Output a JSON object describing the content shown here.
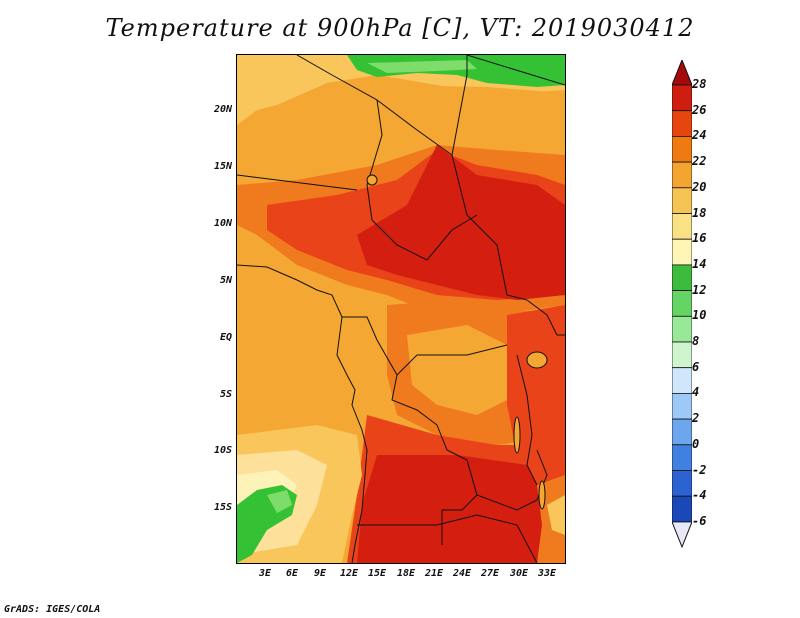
{
  "title": "Temperature at 900hPa [C], VT: 2019030412",
  "footer": "GrADS: IGES/COLA",
  "latitude_labels": [
    "20N",
    "15N",
    "10N",
    "5N",
    "EQ",
    "5S",
    "10S",
    "15S"
  ],
  "longitude_labels": [
    "3E",
    "6E",
    "9E",
    "12E",
    "15E",
    "18E",
    "21E",
    "24E",
    "27E",
    "30E",
    "33E"
  ],
  "colorbar": {
    "labels": [
      "28",
      "26",
      "24",
      "22",
      "20",
      "18",
      "16",
      "14",
      "12",
      "10",
      "8",
      "6",
      "4",
      "2",
      "0",
      "-2",
      "-4",
      "-6"
    ],
    "colors": [
      "#a50a0a",
      "#cf1d10",
      "#e6450f",
      "#f07a12",
      "#f4a530",
      "#f6c454",
      "#fbe186",
      "#fdf4b6",
      "#3dbb3d",
      "#64d564",
      "#98e898",
      "#cff5cf",
      "#cfe6fb",
      "#9ec9f6",
      "#6ca7ee",
      "#3f80e0",
      "#2b64d2",
      "#1a48b8",
      "#102a8a",
      "#0a1460"
    ],
    "upper_arrow_color": "#a50a0a",
    "lower_arrow_color": "#e8e8f8"
  },
  "map_colors": {
    "c28": "#d41e10",
    "c26": "#e9431a",
    "c24": "#f07a1e",
    "c22": "#f5a733",
    "c20": "#f8c65a",
    "c18": "#fde19a",
    "c16": "#fdf3b8",
    "green": "#34c234",
    "lightgreen": "#7ddc6a"
  }
}
